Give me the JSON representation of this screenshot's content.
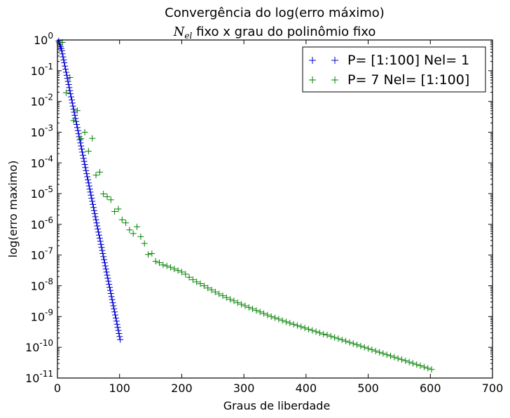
{
  "chart_data": {
    "type": "scatter",
    "title_line1": "Convergência do log(erro máximo)",
    "title_math": "N",
    "title_math_sub": "el",
    "title_line2_rest": " fixo x grau do polinômio fixo",
    "xlabel": "Graus de liberdade",
    "ylabel": "log(erro maximo)",
    "xlim": [
      0,
      700
    ],
    "ylim_log10": [
      -11,
      0
    ],
    "y_scale": "log",
    "grid": false,
    "legend_position": "top-right",
    "x_ticks": [
      {
        "label": "0",
        "value": 0
      },
      {
        "label": "100",
        "value": 100
      },
      {
        "label": "200",
        "value": 200
      },
      {
        "label": "300",
        "value": 300
      },
      {
        "label": "400",
        "value": 400
      },
      {
        "label": "500",
        "value": 500
      },
      {
        "label": "600",
        "value": 600
      },
      {
        "label": "700",
        "value": 700
      }
    ],
    "y_ticks": [
      {
        "base": "10",
        "exp": "0",
        "value": 0
      },
      {
        "base": "10",
        "exp": "-1",
        "value": -1
      },
      {
        "base": "10",
        "exp": "-2",
        "value": -2
      },
      {
        "base": "10",
        "exp": "-3",
        "value": -3
      },
      {
        "base": "10",
        "exp": "-4",
        "value": -4
      },
      {
        "base": "10",
        "exp": "-5",
        "value": -5
      },
      {
        "base": "10",
        "exp": "-6",
        "value": -6
      },
      {
        "base": "10",
        "exp": "-7",
        "value": -7
      },
      {
        "base": "10",
        "exp": "-8",
        "value": -8
      },
      {
        "base": "10",
        "exp": "-9",
        "value": -9
      },
      {
        "base": "10",
        "exp": "-10",
        "value": -10
      },
      {
        "base": "10",
        "exp": "-11",
        "value": -11
      }
    ],
    "series": [
      {
        "name": "P= [1:100] Nel= 1",
        "color": "#0000cc",
        "marker": "plus",
        "x": [
          2,
          3,
          4,
          5,
          6,
          7,
          8,
          9,
          10,
          11,
          12,
          13,
          14,
          15,
          16,
          17,
          18,
          19,
          20,
          21,
          22,
          23,
          24,
          25,
          26,
          27,
          28,
          29,
          30,
          31,
          32,
          33,
          34,
          35,
          36,
          37,
          38,
          39,
          40,
          41,
          42,
          43,
          44,
          45,
          46,
          47,
          48,
          49,
          50,
          51,
          52,
          53,
          54,
          55,
          56,
          57,
          58,
          59,
          60,
          61,
          62,
          63,
          64,
          65,
          66,
          67,
          68,
          69,
          70,
          71,
          72,
          73,
          74,
          75,
          76,
          77,
          78,
          79,
          80,
          81,
          82,
          83,
          84,
          85,
          86,
          87,
          88,
          89,
          90,
          91,
          92,
          93,
          94,
          95,
          96,
          97,
          98,
          99,
          100,
          101
        ],
        "y_log10": [
          -0.03,
          -0.09,
          -0.16,
          -0.22,
          -0.28,
          -0.35,
          -0.45,
          -0.55,
          -0.65,
          -0.74,
          -0.85,
          -0.95,
          -1.05,
          -1.15,
          -1.25,
          -1.35,
          -1.45,
          -1.55,
          -1.65,
          -1.75,
          -1.85,
          -1.95,
          -2.05,
          -2.15,
          -2.25,
          -2.35,
          -2.45,
          -2.55,
          -2.65,
          -2.75,
          -2.85,
          -2.95,
          -3.05,
          -3.15,
          -3.25,
          -3.35,
          -3.45,
          -3.55,
          -3.65,
          -3.75,
          -3.85,
          -3.95,
          -4.05,
          -4.15,
          -4.25,
          -4.35,
          -4.45,
          -4.55,
          -4.65,
          -4.75,
          -4.85,
          -4.95,
          -5.05,
          -5.15,
          -5.25,
          -5.35,
          -5.45,
          -5.55,
          -5.65,
          -5.75,
          -5.85,
          -5.95,
          -6.05,
          -6.15,
          -6.25,
          -6.35,
          -6.45,
          -6.55,
          -6.65,
          -6.75,
          -6.85,
          -6.95,
          -7.05,
          -7.15,
          -7.25,
          -7.35,
          -7.45,
          -7.55,
          -7.65,
          -7.75,
          -7.85,
          -7.95,
          -8.05,
          -8.15,
          -8.25,
          -8.35,
          -8.45,
          -8.55,
          -8.65,
          -8.75,
          -8.85,
          -8.95,
          -9.05,
          -9.15,
          -9.25,
          -9.35,
          -9.45,
          -9.55,
          -9.65,
          -9.75
        ]
      },
      {
        "name": "P= 7 Nel= [1:100]",
        "color": "#008000",
        "marker": "plus",
        "x": [
          8,
          14,
          20,
          26,
          32,
          38,
          44,
          50,
          56,
          62,
          68,
          74,
          80,
          86,
          92,
          98,
          104,
          110,
          116,
          122,
          128,
          134,
          140,
          146,
          152,
          158,
          164,
          170,
          176,
          182,
          188,
          194,
          200,
          206,
          212,
          218,
          224,
          230,
          236,
          242,
          248,
          254,
          260,
          266,
          272,
          278,
          284,
          290,
          296,
          302,
          308,
          314,
          320,
          326,
          332,
          338,
          344,
          350,
          356,
          362,
          368,
          374,
          380,
          386,
          392,
          398,
          404,
          410,
          416,
          422,
          428,
          434,
          440,
          446,
          452,
          458,
          464,
          470,
          476,
          482,
          488,
          494,
          500,
          506,
          512,
          518,
          524,
          530,
          536,
          542,
          548,
          554,
          560,
          566,
          572,
          578,
          584,
          590,
          596,
          602
        ],
        "y_log10": [
          -0.08,
          -1.72,
          -1.22,
          -2.62,
          -2.3,
          -3.21,
          -3.0,
          -3.62,
          -3.2,
          -4.4,
          -4.3,
          -5.01,
          -5.1,
          -5.2,
          -5.58,
          -5.5,
          -5.85,
          -5.95,
          -6.18,
          -6.3,
          -6.08,
          -6.4,
          -6.62,
          -6.98,
          -6.95,
          -7.2,
          -7.25,
          -7.32,
          -7.35,
          -7.4,
          -7.45,
          -7.5,
          -7.55,
          -7.62,
          -7.72,
          -7.8,
          -7.87,
          -7.93,
          -8.0,
          -8.07,
          -8.13,
          -8.2,
          -8.26,
          -8.32,
          -8.38,
          -8.44,
          -8.49,
          -8.55,
          -8.6,
          -8.65,
          -8.7,
          -8.75,
          -8.8,
          -8.85,
          -8.9,
          -8.95,
          -9.0,
          -9.04,
          -9.08,
          -9.13,
          -9.17,
          -9.21,
          -9.25,
          -9.29,
          -9.33,
          -9.37,
          -9.41,
          -9.45,
          -9.49,
          -9.53,
          -9.57,
          -9.6,
          -9.64,
          -9.68,
          -9.72,
          -9.76,
          -9.8,
          -9.84,
          -9.88,
          -9.92,
          -9.96,
          -10.0,
          -10.04,
          -10.08,
          -10.12,
          -10.16,
          -10.2,
          -10.24,
          -10.28,
          -10.32,
          -10.36,
          -10.4,
          -10.44,
          -10.48,
          -10.52,
          -10.56,
          -10.6,
          -10.64,
          -10.68,
          -10.72
        ]
      }
    ]
  }
}
